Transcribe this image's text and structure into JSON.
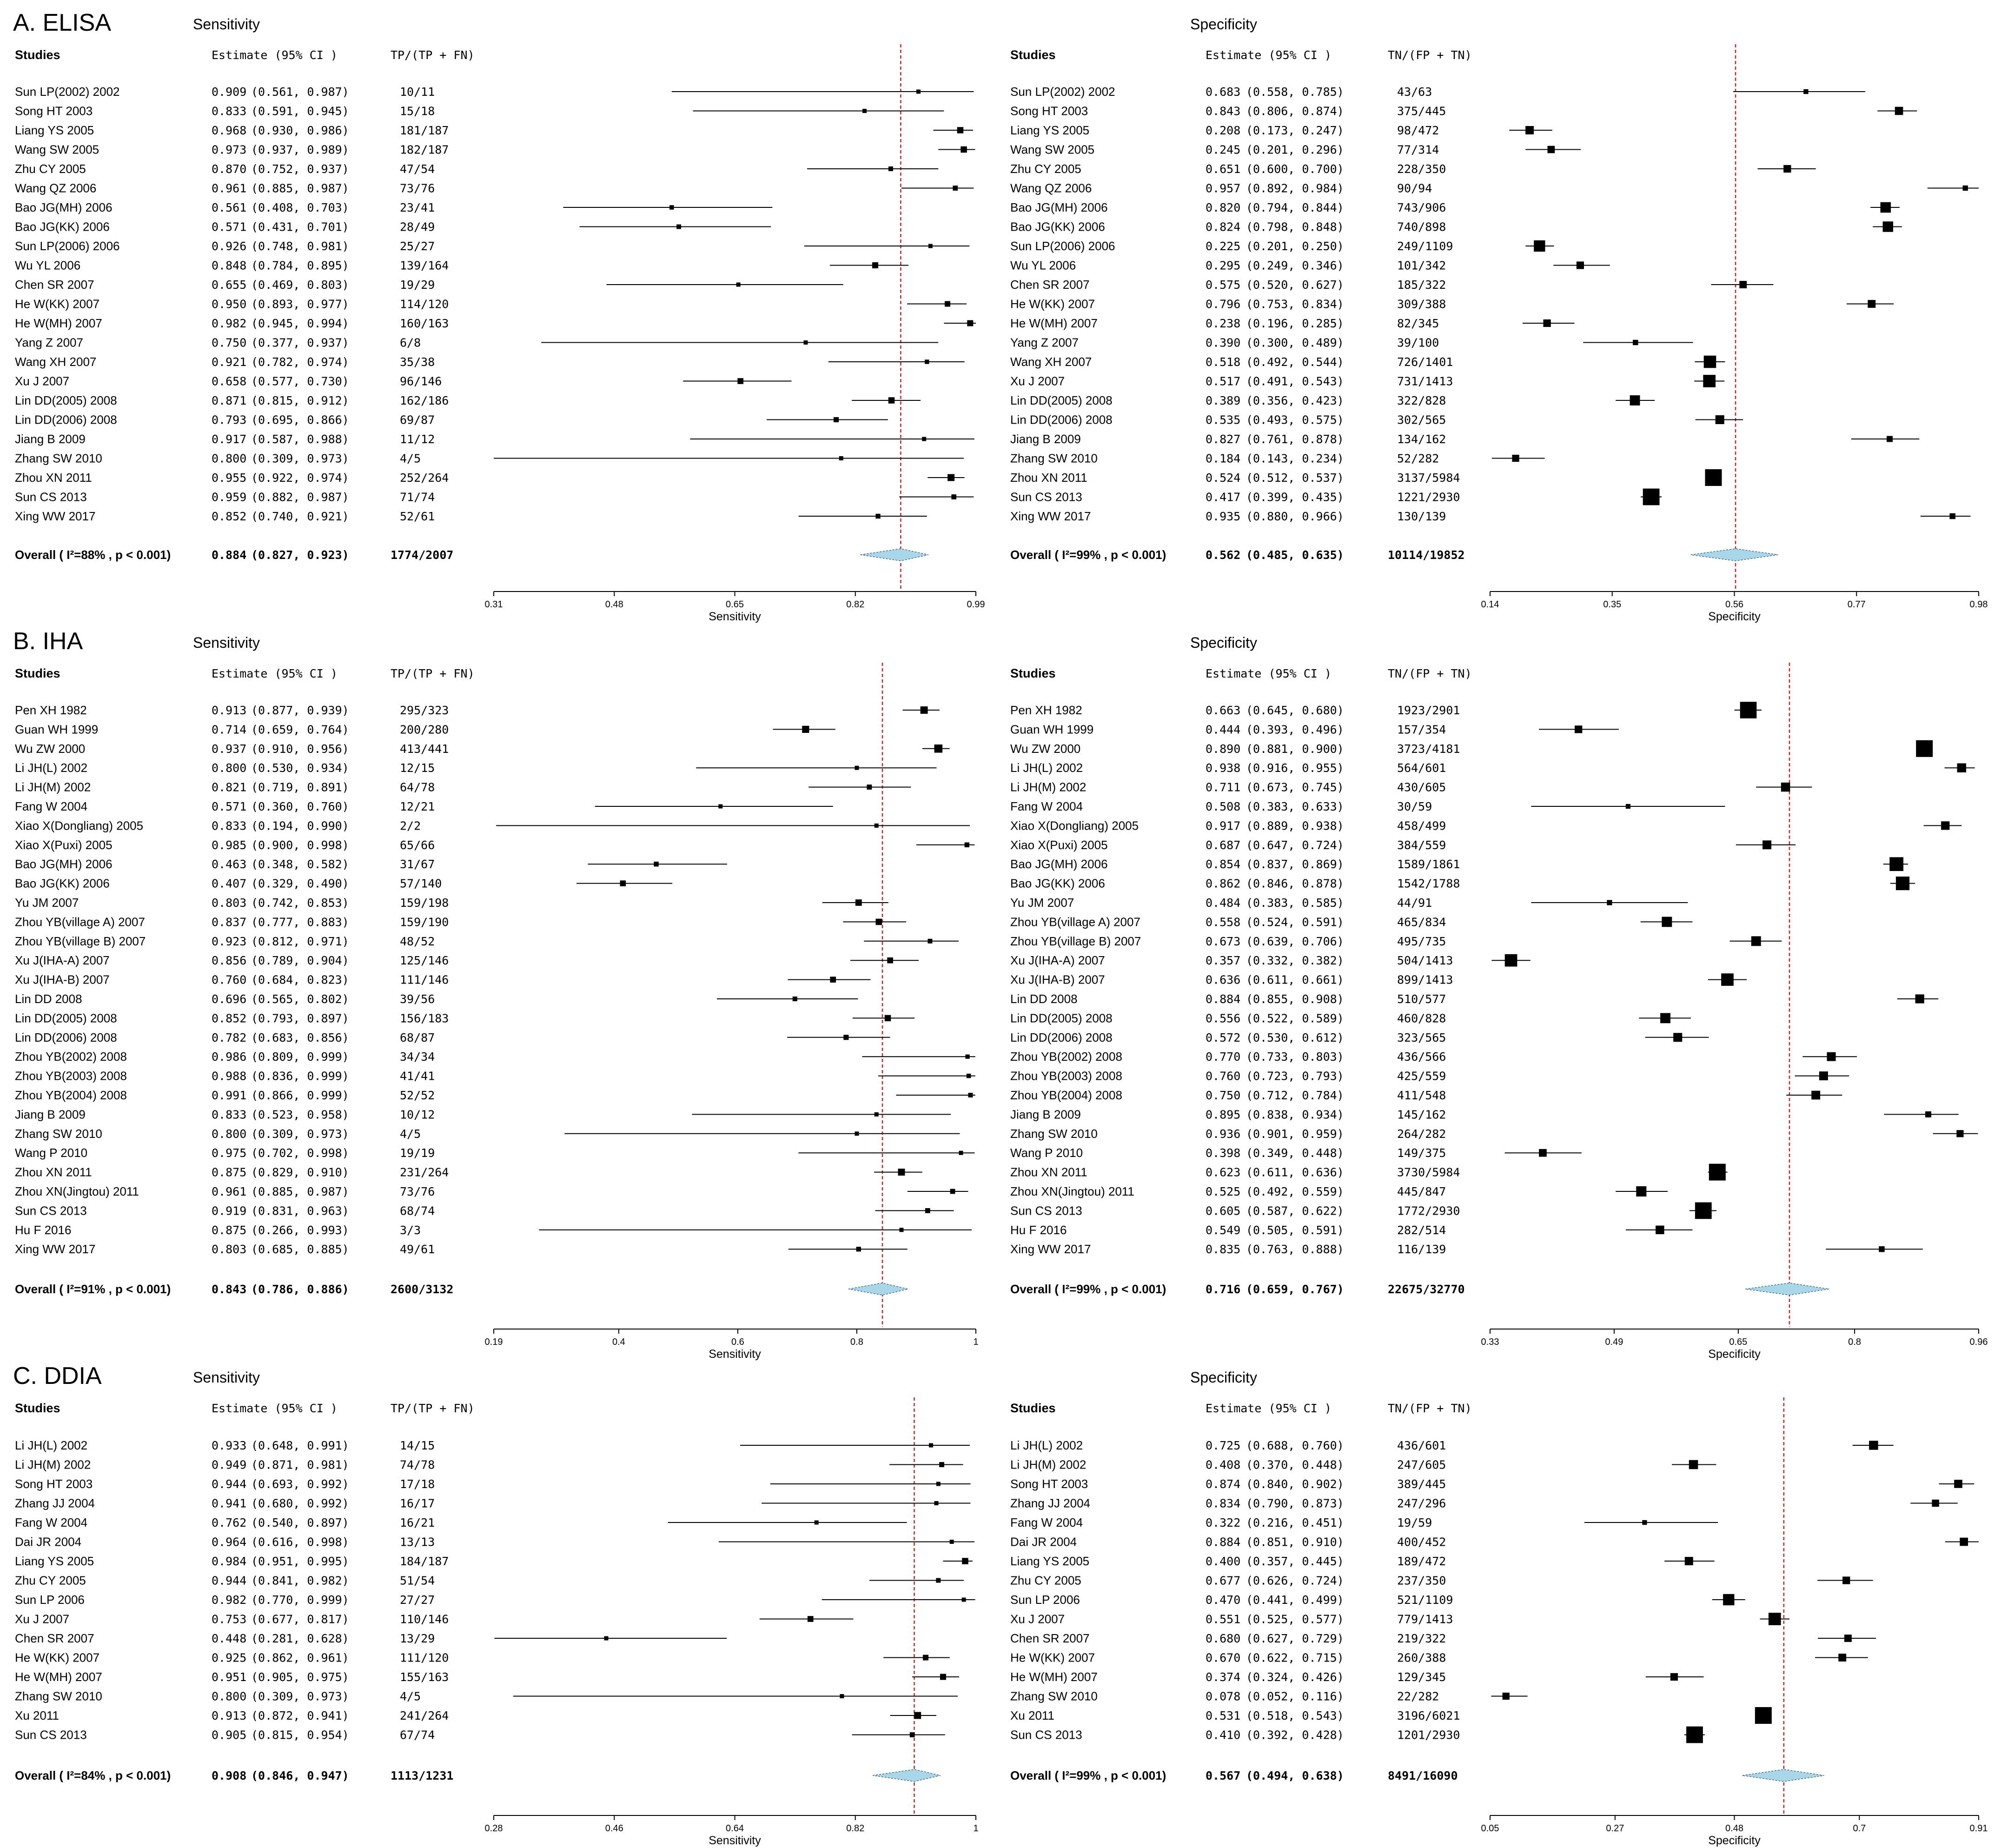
{
  "figure_note": "Forest plots of sensitivity and specificity",
  "table_headers": {
    "studies": "Studies",
    "estimate": "Estimate (95% CI )",
    "sens_counts": "TP/(TP + FN)",
    "spec_counts": "TN/(FP + TN)",
    "sensitivity_title": "Sensitivity",
    "specificity_title": "Specificity",
    "sens_axis_label": "Sensitivity",
    "spec_axis_label": "Specificity"
  },
  "chart_data": [
    {
      "type": "forest",
      "panel": "A. ELISA",
      "measure": "Sensitivity",
      "studies": [
        "Sun LP(2002) 2002",
        "Song HT 2003",
        "Liang YS 2005",
        "Wang SW 2005",
        "Zhu CY 2005",
        "Wang QZ 2006",
        "Bao JG(MH) 2006",
        "Bao JG(KK) 2006",
        "Sun LP(2006) 2006",
        "Wu YL 2006",
        "Chen SR 2007",
        "He W(KK) 2007",
        "He W(MH) 2007",
        "Yang Z 2007",
        "Wang XH 2007",
        "Xu J 2007",
        "Lin DD(2005) 2008",
        "Lin DD(2006) 2008",
        "Jiang B 2009",
        "Zhang SW 2010",
        "Zhou XN 2011",
        "Sun CS 2013",
        "Xing WW 2017"
      ],
      "estimates": [
        0.909,
        0.833,
        0.968,
        0.973,
        0.87,
        0.961,
        0.561,
        0.571,
        0.926,
        0.848,
        0.655,
        0.95,
        0.982,
        0.75,
        0.921,
        0.658,
        0.871,
        0.793,
        0.917,
        0.8,
        0.955,
        0.959,
        0.852
      ],
      "lower": [
        0.561,
        0.591,
        0.93,
        0.937,
        0.752,
        0.885,
        0.408,
        0.431,
        0.748,
        0.784,
        0.469,
        0.893,
        0.945,
        0.377,
        0.782,
        0.577,
        0.815,
        0.695,
        0.587,
        0.309,
        0.922,
        0.882,
        0.74
      ],
      "upper": [
        0.987,
        0.945,
        0.986,
        0.989,
        0.937,
        0.987,
        0.703,
        0.701,
        0.981,
        0.895,
        0.803,
        0.977,
        0.994,
        0.937,
        0.974,
        0.73,
        0.912,
        0.866,
        0.988,
        0.973,
        0.974,
        0.987,
        0.921
      ],
      "counts": [
        "10/11",
        "15/18",
        "181/187",
        "182/187",
        "47/54",
        "73/76",
        "23/41",
        "28/49",
        "25/27",
        "139/164",
        "19/29",
        "114/120",
        "160/163",
        "6/8",
        "35/38",
        "96/146",
        "162/186",
        "69/87",
        "11/12",
        "4/5",
        "252/264",
        "71/74",
        "52/61"
      ],
      "overall": {
        "label": "Overall ( I²=88% , p < 0.001)",
        "i2": "88%",
        "p": "p < 0.001",
        "estimate": 0.884,
        "lower": 0.827,
        "upper": 0.923,
        "counts": "1774/2007"
      },
      "x_ticks": [
        "0.31",
        "0.48",
        "0.65",
        "0.82",
        "0.99"
      ],
      "xlim": [
        0.31,
        0.99
      ],
      "xlabel": "Sensitivity"
    },
    {
      "type": "forest",
      "panel": "A. ELISA",
      "measure": "Specificity",
      "studies": [
        "Sun LP(2002) 2002",
        "Song HT 2003",
        "Liang YS 2005",
        "Wang SW 2005",
        "Zhu CY 2005",
        "Wang QZ 2006",
        "Bao JG(MH) 2006",
        "Bao JG(KK) 2006",
        "Sun LP(2006) 2006",
        "Wu YL 2006",
        "Chen SR 2007",
        "He W(KK) 2007",
        "He W(MH) 2007",
        "Yang Z 2007",
        "Wang XH 2007",
        "Xu J 2007",
        "Lin DD(2005) 2008",
        "Lin DD(2006) 2008",
        "Jiang B 2009",
        "Zhang SW 2010",
        "Zhou XN 2011",
        "Sun CS 2013",
        "Xing WW 2017"
      ],
      "estimates": [
        0.683,
        0.843,
        0.208,
        0.245,
        0.651,
        0.957,
        0.82,
        0.824,
        0.225,
        0.295,
        0.575,
        0.796,
        0.238,
        0.39,
        0.518,
        0.517,
        0.389,
        0.535,
        0.827,
        0.184,
        0.524,
        0.417,
        0.935
      ],
      "lower": [
        0.558,
        0.806,
        0.173,
        0.201,
        0.6,
        0.892,
        0.794,
        0.798,
        0.201,
        0.249,
        0.52,
        0.753,
        0.196,
        0.3,
        0.492,
        0.491,
        0.356,
        0.493,
        0.761,
        0.143,
        0.512,
        0.399,
        0.88
      ],
      "upper": [
        0.785,
        0.874,
        0.247,
        0.296,
        0.7,
        0.984,
        0.844,
        0.848,
        0.25,
        0.346,
        0.627,
        0.834,
        0.285,
        0.489,
        0.544,
        0.543,
        0.423,
        0.575,
        0.878,
        0.234,
        0.537,
        0.435,
        0.966
      ],
      "counts": [
        "43/63",
        "375/445",
        "98/472",
        "77/314",
        "228/350",
        "90/94",
        "743/906",
        "740/898",
        "249/1109",
        "101/342",
        "185/322",
        "309/388",
        "82/345",
        "39/100",
        "726/1401",
        "731/1413",
        "322/828",
        "302/565",
        "134/162",
        "52/282",
        "3137/5984",
        "1221/2930",
        "130/139"
      ],
      "overall": {
        "label": "Overall ( I²=99% , p < 0.001)",
        "i2": "99%",
        "p": "p < 0.001",
        "estimate": 0.562,
        "lower": 0.485,
        "upper": 0.635,
        "counts": "10114/19852"
      },
      "x_ticks": [
        "0.14",
        "0.35",
        "0.56",
        "0.77",
        "0.98"
      ],
      "xlim": [
        0.14,
        0.98
      ],
      "xlabel": "Specificity"
    },
    {
      "type": "forest",
      "panel": "B. IHA",
      "measure": "Sensitivity",
      "studies": [
        "Pen XH 1982",
        "Guan WH 1999",
        "Wu ZW 2000",
        "Li JH(L) 2002",
        "Li JH(M) 2002",
        "Fang W 2004",
        "Xiao X(Dongliang) 2005",
        "Xiao X(Puxi) 2005",
        "Bao JG(MH) 2006",
        "Bao JG(KK) 2006",
        "Yu JM 2007",
        "Zhou YB(village A) 2007",
        "Zhou YB(village B) 2007",
        "Xu J(IHA-A) 2007",
        "Xu J(IHA-B) 2007",
        "Lin DD 2008",
        "Lin DD(2005) 2008",
        "Lin DD(2006) 2008",
        "Zhou YB(2002) 2008",
        "Zhou YB(2003) 2008",
        "Zhou YB(2004) 2008",
        "Jiang B 2009",
        "Zhang SW 2010",
        "Wang P 2010",
        "Zhou XN 2011",
        "Zhou XN(Jingtou) 2011",
        "Sun CS 2013",
        "Hu F 2016",
        "Xing WW 2017"
      ],
      "estimates": [
        0.913,
        0.714,
        0.937,
        0.8,
        0.821,
        0.571,
        0.833,
        0.985,
        0.463,
        0.407,
        0.803,
        0.837,
        0.923,
        0.856,
        0.76,
        0.696,
        0.852,
        0.782,
        0.986,
        0.988,
        0.991,
        0.833,
        0.8,
        0.975,
        0.875,
        0.961,
        0.919,
        0.875,
        0.803
      ],
      "lower": [
        0.877,
        0.659,
        0.91,
        0.53,
        0.719,
        0.36,
        0.194,
        0.9,
        0.348,
        0.329,
        0.742,
        0.777,
        0.812,
        0.789,
        0.684,
        0.565,
        0.793,
        0.683,
        0.809,
        0.836,
        0.866,
        0.523,
        0.309,
        0.702,
        0.829,
        0.885,
        0.831,
        0.266,
        0.685
      ],
      "upper": [
        0.939,
        0.764,
        0.956,
        0.934,
        0.891,
        0.76,
        0.99,
        0.998,
        0.582,
        0.49,
        0.853,
        0.883,
        0.971,
        0.904,
        0.823,
        0.802,
        0.897,
        0.856,
        0.999,
        0.999,
        0.999,
        0.958,
        0.973,
        0.998,
        0.91,
        0.987,
        0.963,
        0.993,
        0.885
      ],
      "counts": [
        "295/323",
        "200/280",
        "413/441",
        "12/15",
        "64/78",
        "12/21",
        "2/2",
        "65/66",
        "31/67",
        "57/140",
        "159/198",
        "159/190",
        "48/52",
        "125/146",
        "111/146",
        "39/56",
        "156/183",
        "68/87",
        "34/34",
        "41/41",
        "52/52",
        "10/12",
        "4/5",
        "19/19",
        "231/264",
        "73/76",
        "68/74",
        "3/3",
        "49/61"
      ],
      "overall": {
        "label": "Overall ( I²=91% , p < 0.001)",
        "i2": "91%",
        "p": "p < 0.001",
        "estimate": 0.843,
        "lower": 0.786,
        "upper": 0.886,
        "counts": "2600/3132"
      },
      "x_ticks": [
        "0.19",
        "0.4",
        "0.6",
        "0.8",
        "1"
      ],
      "xlim": [
        0.19,
        1.0
      ],
      "xlabel": "Sensitivity"
    },
    {
      "type": "forest",
      "panel": "B. IHA",
      "measure": "Specificity",
      "studies": [
        "Pen XH 1982",
        "Guan WH 1999",
        "Wu ZW 2000",
        "Li JH(L) 2002",
        "Li JH(M) 2002",
        "Fang W 2004",
        "Xiao X(Dongliang) 2005",
        "Xiao X(Puxi) 2005",
        "Bao JG(MH) 2006",
        "Bao JG(KK) 2006",
        "Yu JM 2007",
        "Zhou YB(village A) 2007",
        "Zhou YB(village B) 2007",
        "Xu J(IHA-A) 2007",
        "Xu J(IHA-B) 2007",
        "Lin DD 2008",
        "Lin DD(2005) 2008",
        "Lin DD(2006) 2008",
        "Zhou YB(2002) 2008",
        "Zhou YB(2003) 2008",
        "Zhou YB(2004) 2008",
        "Jiang B 2009",
        "Zhang SW 2010",
        "Wang P 2010",
        "Zhou XN 2011",
        "Zhou XN(Jingtou) 2011",
        "Sun CS 2013",
        "Hu F 2016",
        "Xing WW 2017"
      ],
      "estimates": [
        0.663,
        0.444,
        0.89,
        0.938,
        0.711,
        0.508,
        0.917,
        0.687,
        0.854,
        0.862,
        0.484,
        0.558,
        0.673,
        0.357,
        0.636,
        0.884,
        0.556,
        0.572,
        0.77,
        0.76,
        0.75,
        0.895,
        0.936,
        0.398,
        0.623,
        0.525,
        0.605,
        0.549,
        0.835
      ],
      "lower": [
        0.645,
        0.393,
        0.881,
        0.916,
        0.673,
        0.383,
        0.889,
        0.647,
        0.837,
        0.846,
        0.383,
        0.524,
        0.639,
        0.332,
        0.611,
        0.855,
        0.522,
        0.53,
        0.733,
        0.723,
        0.712,
        0.838,
        0.901,
        0.349,
        0.611,
        0.492,
        0.587,
        0.505,
        0.763
      ],
      "upper": [
        0.68,
        0.496,
        0.9,
        0.955,
        0.745,
        0.633,
        0.938,
        0.724,
        0.869,
        0.878,
        0.585,
        0.591,
        0.706,
        0.382,
        0.661,
        0.908,
        0.589,
        0.612,
        0.803,
        0.793,
        0.784,
        0.934,
        0.959,
        0.448,
        0.636,
        0.559,
        0.622,
        0.591,
        0.888
      ],
      "counts": [
        "1923/2901",
        "157/354",
        "3723/4181",
        "564/601",
        "430/605",
        "30/59",
        "458/499",
        "384/559",
        "1589/1861",
        "1542/1788",
        "44/91",
        "465/834",
        "495/735",
        "504/1413",
        "899/1413",
        "510/577",
        "460/828",
        "323/565",
        "436/566",
        "425/559",
        "411/548",
        "145/162",
        "264/282",
        "149/375",
        "3730/5984",
        "445/847",
        "1772/2930",
        "282/514",
        "116/139"
      ],
      "overall": {
        "label": "Overall ( I²=99% , p < 0.001)",
        "i2": "99%",
        "p": "p < 0.001",
        "estimate": 0.716,
        "lower": 0.659,
        "upper": 0.767,
        "counts": "22675/32770"
      },
      "x_ticks": [
        "0.33",
        "0.49",
        "0.65",
        "0.8",
        "0.96"
      ],
      "xlim": [
        0.33,
        0.96
      ],
      "xlabel": "Specificity"
    },
    {
      "type": "forest",
      "panel": "C. DDIA",
      "measure": "Sensitivity",
      "studies": [
        "Li JH(L) 2002",
        "Li JH(M) 2002",
        "Song HT 2003",
        "Zhang JJ 2004",
        "Fang W 2004",
        "Dai JR 2004",
        "Liang YS 2005",
        "Zhu CY 2005",
        "Sun LP 2006",
        "Xu J 2007",
        "Chen SR 2007",
        "He W(KK) 2007",
        "He W(MH) 2007",
        "Zhang SW 2010",
        "Xu 2011",
        "Sun CS 2013"
      ],
      "estimates": [
        0.933,
        0.949,
        0.944,
        0.941,
        0.762,
        0.964,
        0.984,
        0.944,
        0.982,
        0.753,
        0.448,
        0.925,
        0.951,
        0.8,
        0.913,
        0.905
      ],
      "lower": [
        0.648,
        0.871,
        0.693,
        0.68,
        0.54,
        0.616,
        0.951,
        0.841,
        0.77,
        0.677,
        0.281,
        0.862,
        0.905,
        0.309,
        0.872,
        0.815
      ],
      "upper": [
        0.991,
        0.981,
        0.992,
        0.992,
        0.897,
        0.998,
        0.995,
        0.982,
        0.999,
        0.817,
        0.628,
        0.961,
        0.975,
        0.973,
        0.941,
        0.954
      ],
      "counts": [
        "14/15",
        "74/78",
        "17/18",
        "16/17",
        "16/21",
        "13/13",
        "184/187",
        "51/54",
        "27/27",
        "110/146",
        "13/29",
        "111/120",
        "155/163",
        "4/5",
        "241/264",
        "67/74"
      ],
      "overall": {
        "label": "Overall ( I²=84% , p < 0.001)",
        "i2": "84%",
        "p": "p < 0.001",
        "estimate": 0.908,
        "lower": 0.846,
        "upper": 0.947,
        "counts": "1113/1231"
      },
      "x_ticks": [
        "0.28",
        "0.46",
        "0.64",
        "0.82",
        "1"
      ],
      "xlim": [
        0.28,
        1.0
      ],
      "xlabel": "Sensitivity"
    },
    {
      "type": "forest",
      "panel": "C. DDIA",
      "measure": "Specificity",
      "studies": [
        "Li JH(L) 2002",
        "Li JH(M) 2002",
        "Song HT 2003",
        "Zhang JJ 2004",
        "Fang W 2004",
        "Dai JR 2004",
        "Liang YS 2005",
        "Zhu CY 2005",
        "Sun LP 2006",
        "Xu J 2007",
        "Chen SR 2007",
        "He W(KK) 2007",
        "He W(MH) 2007",
        "Zhang SW 2010",
        "Xu 2011",
        "Sun CS 2013"
      ],
      "estimates": [
        0.725,
        0.408,
        0.874,
        0.834,
        0.322,
        0.884,
        0.4,
        0.677,
        0.47,
        0.551,
        0.68,
        0.67,
        0.374,
        0.078,
        0.531,
        0.41
      ],
      "lower": [
        0.688,
        0.37,
        0.84,
        0.79,
        0.216,
        0.851,
        0.357,
        0.626,
        0.441,
        0.525,
        0.627,
        0.622,
        0.324,
        0.052,
        0.518,
        0.392
      ],
      "upper": [
        0.76,
        0.448,
        0.902,
        0.873,
        0.451,
        0.91,
        0.445,
        0.724,
        0.499,
        0.577,
        0.729,
        0.715,
        0.426,
        0.116,
        0.543,
        0.428
      ],
      "counts": [
        "436/601",
        "247/605",
        "389/445",
        "247/296",
        "19/59",
        "400/452",
        "189/472",
        "237/350",
        "521/1109",
        "779/1413",
        "219/322",
        "260/388",
        "129/345",
        "22/282",
        "3196/6021",
        "1201/2930"
      ],
      "overall": {
        "label": "Overall ( I²=99% , p < 0.001)",
        "i2": "99%",
        "p": "p < 0.001",
        "estimate": 0.567,
        "lower": 0.494,
        "upper": 0.638,
        "counts": "8491/16090"
      },
      "x_ticks": [
        "0.05",
        "0.27",
        "0.48",
        "0.7",
        "0.91"
      ],
      "xlim": [
        0.05,
        0.91
      ],
      "xlabel": "Specificity"
    }
  ],
  "colors": {
    "diamond_fill": "#a9d7ea",
    "diamond_stroke": "#4a6f80",
    "pooled_line": "#d62020",
    "ci_line": "#000000",
    "text": "#000000"
  }
}
